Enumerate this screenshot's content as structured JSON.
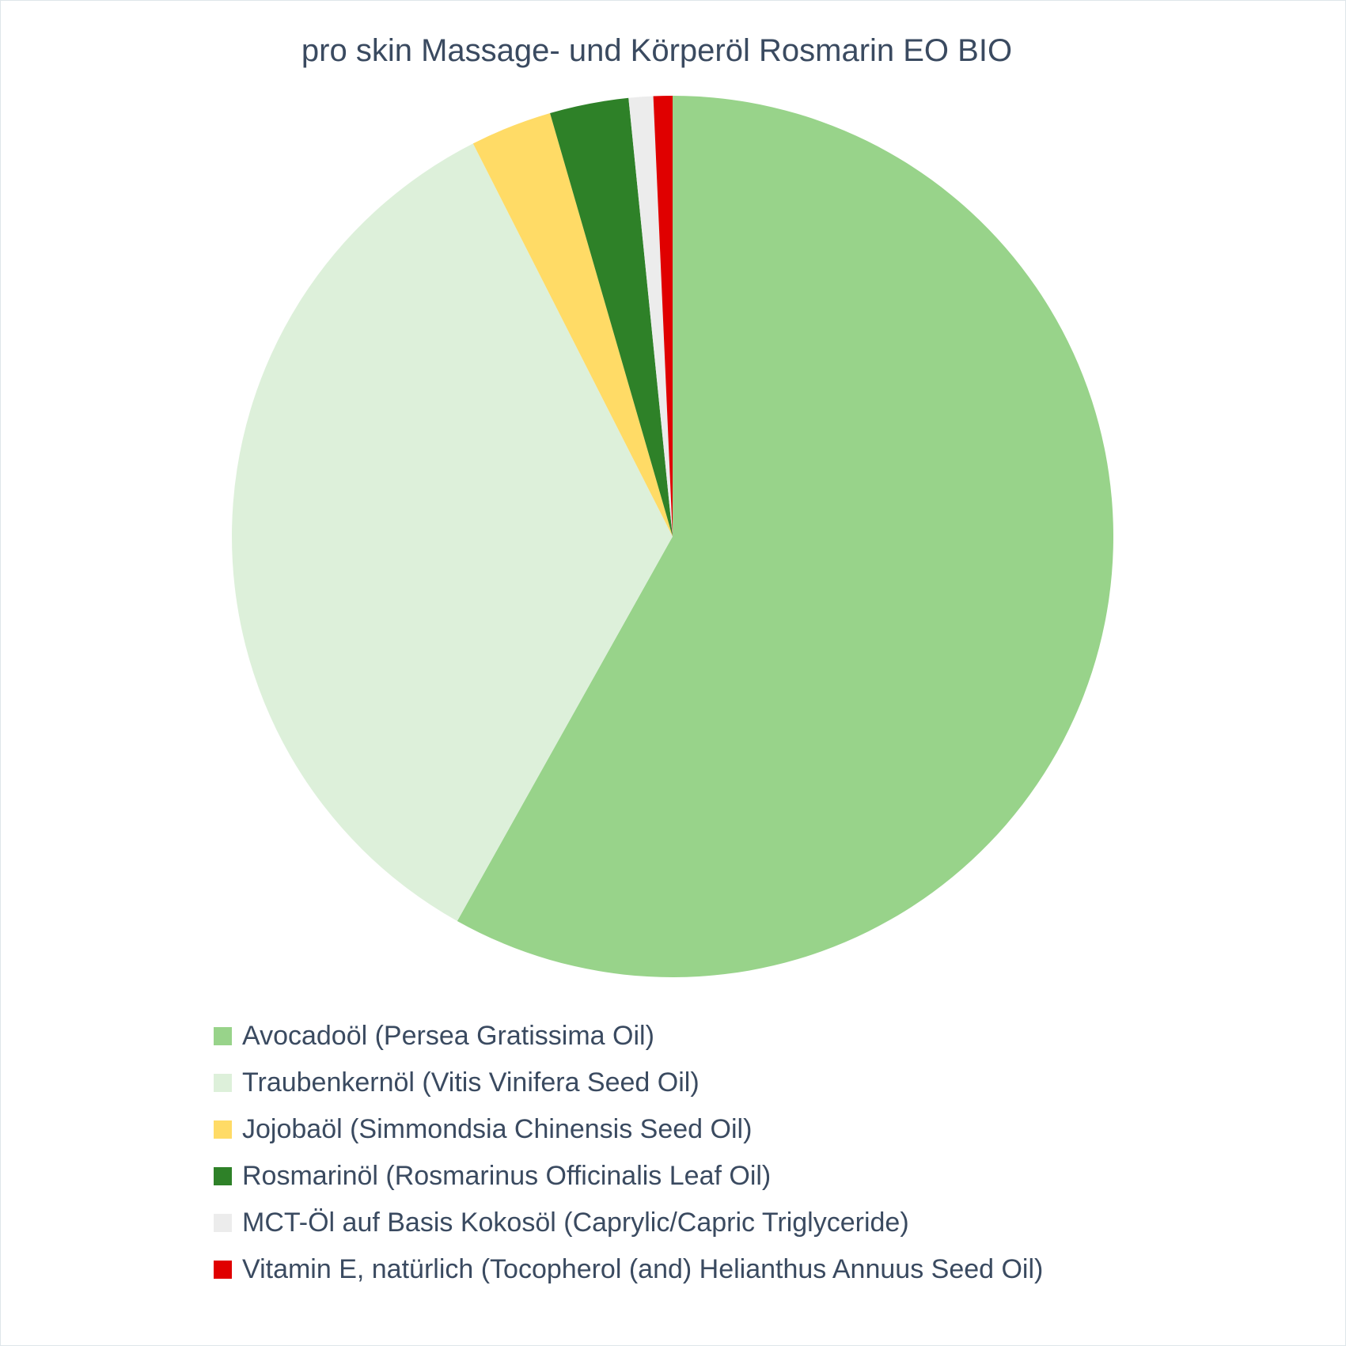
{
  "chart_data": {
    "type": "pie",
    "title": "pro skin Massage- und Körperöl Rosmarin EO BIO",
    "slices": [
      {
        "label": "Avocadoöl (Persea Gratissima Oil)",
        "value": 58.3,
        "color": "#98d38a"
      },
      {
        "label": "Traubenkernöl (Vitis Vinifera Seed Oil)",
        "value": 34.5,
        "color": "#ddf0da"
      },
      {
        "label": "Jojobaöl (Simmondsia Chinensis Seed Oil)",
        "value": 3.0,
        "color": "#ffdb66"
      },
      {
        "label": "Rosmarinöl (Rosmarinus Officinalis Leaf Oil)",
        "value": 2.9,
        "color": "#2e8128"
      },
      {
        "label": "MCT-Öl auf Basis Kokosöl (Caprylic/Capric Triglyceride)",
        "value": 0.9,
        "color": "#ececec"
      },
      {
        "label": "Vitamin E, natürlich (Tocopherol (and) Helianthus Annuus Seed Oil)",
        "value": 0.7,
        "color": "#e00000"
      }
    ],
    "start_angle": "12 o'clock",
    "direction": "clockwise",
    "legend_position": "bottom"
  }
}
